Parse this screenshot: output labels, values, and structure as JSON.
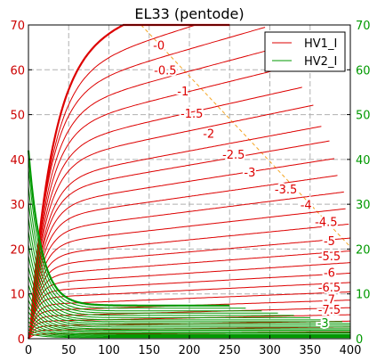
{
  "chart_data": {
    "type": "line",
    "title": "EL33 (pentode)",
    "xlabel": "",
    "ylabel": "",
    "y2label": "",
    "xlim": [
      0,
      400
    ],
    "ylim": [
      0,
      70
    ],
    "y2lim": [
      0,
      70
    ],
    "x_ticks": [
      0,
      50,
      100,
      150,
      200,
      250,
      300,
      350,
      400
    ],
    "y_ticks": [
      0,
      10,
      20,
      30,
      40,
      50,
      60,
      70
    ],
    "y2_ticks": [
      0,
      10,
      20,
      30,
      40,
      50,
      60,
      70
    ],
    "grid": true,
    "legend": {
      "placement": "top-right",
      "entries": [
        {
          "name": "HV1_I",
          "color": "#dd0000"
        },
        {
          "name": "HV2_I",
          "color": "#009900"
        }
      ]
    },
    "colors": {
      "anode_curves": "#dd0000",
      "screen_curves": "#009900",
      "load_line": "#f5a623",
      "left_axis_text": "#cc0000",
      "right_axis_text": "#009900"
    },
    "series": [
      {
        "name": "HV1_I",
        "grid_voltage": "-0",
        "end_x": 250,
        "plateau": 67.5,
        "knee": 28,
        "bold": true
      },
      {
        "name": "HV1_I",
        "grid_voltage": "-0.5",
        "end_x": 270,
        "plateau": 61.8,
        "knee": 26
      },
      {
        "name": "HV1_I",
        "grid_voltage": "-1",
        "end_x": 295,
        "plateau": 57.4,
        "knee": 24
      },
      {
        "name": "HV1_I",
        "grid_voltage": "-1.5",
        "end_x": 320,
        "plateau": 53.0,
        "knee": 23
      },
      {
        "name": "HV1_I",
        "grid_voltage": "-2",
        "end_x": 330,
        "plateau": 49.0,
        "knee": 22
      },
      {
        "name": "HV1_I",
        "grid_voltage": "-2.5",
        "end_x": 340,
        "plateau": 44.8,
        "knee": 21
      },
      {
        "name": "HV1_I",
        "grid_voltage": "-3",
        "end_x": 355,
        "plateau": 41.2,
        "knee": 20
      },
      {
        "name": "HV1_I",
        "grid_voltage": "-3.5",
        "end_x": 365,
        "plateau": 37.2,
        "knee": 19
      },
      {
        "name": "HV1_I",
        "grid_voltage": "-4",
        "end_x": 375,
        "plateau": 34.4,
        "knee": 18
      },
      {
        "name": "HV1_I",
        "grid_voltage": "-4.5",
        "end_x": 380,
        "plateau": 31.2,
        "knee": 17
      },
      {
        "name": "HV1_I",
        "grid_voltage": "-5",
        "end_x": 385,
        "plateau": 28.2,
        "knee": 16
      },
      {
        "name": "HV1_I",
        "grid_voltage": "-5.5",
        "end_x": 392,
        "plateau": 25.2,
        "knee": 15
      },
      {
        "name": "HV1_I",
        "grid_voltage": "-6",
        "end_x": 395,
        "plateau": 22.3,
        "knee": 14
      },
      {
        "name": "HV1_I",
        "grid_voltage": "-6.5",
        "end_x": 398,
        "plateau": 19.6,
        "knee": 13
      },
      {
        "name": "HV1_I",
        "grid_voltage": "-7",
        "end_x": 400,
        "plateau": 17.2,
        "knee": 12
      },
      {
        "name": "HV1_I",
        "grid_voltage": "-7.5",
        "end_x": 400,
        "plateau": 15.0,
        "knee": 11
      },
      {
        "name": "HV1_I",
        "grid_voltage": "",
        "end_x": 400,
        "plateau": 13.0,
        "knee": 10
      },
      {
        "name": "HV1_I",
        "grid_voltage": "",
        "end_x": 400,
        "plateau": 11.2,
        "knee": 9
      },
      {
        "name": "HV1_I",
        "grid_voltage": "",
        "end_x": 400,
        "plateau": 9.6,
        "knee": 8
      },
      {
        "name": "HV1_I",
        "grid_voltage": "",
        "end_x": 400,
        "plateau": 8.0,
        "knee": 8
      },
      {
        "name": "HV1_I",
        "grid_voltage": "",
        "end_x": 400,
        "plateau": 6.6,
        "knee": 7
      },
      {
        "name": "HV1_I",
        "grid_voltage": "",
        "end_x": 400,
        "plateau": 5.3,
        "knee": 7
      },
      {
        "name": "HV1_I",
        "grid_voltage": "",
        "end_x": 400,
        "plateau": 4.1,
        "knee": 6
      },
      {
        "name": "HV1_I",
        "grid_voltage": "",
        "end_x": 400,
        "plateau": 3.0,
        "knee": 6
      },
      {
        "name": "HV1_I",
        "grid_voltage": "",
        "end_x": 400,
        "plateau": 2.0,
        "knee": 5
      },
      {
        "name": "HV1_I",
        "grid_voltage": "",
        "end_x": 400,
        "plateau": 1.1,
        "knee": 5
      },
      {
        "name": "HV2_I",
        "grid_voltage": "-0",
        "end_x": 250,
        "peak": 42.0,
        "floor": 7.4,
        "bold": true
      },
      {
        "name": "HV2_I",
        "grid_voltage": "",
        "end_x": 270,
        "peak": 38.0,
        "floor": 6.8
      },
      {
        "name": "HV2_I",
        "grid_voltage": "",
        "end_x": 290,
        "peak": 34.0,
        "floor": 6.2
      },
      {
        "name": "HV2_I",
        "grid_voltage": "",
        "end_x": 310,
        "peak": 30.5,
        "floor": 5.7
      },
      {
        "name": "HV2_I",
        "grid_voltage": "",
        "end_x": 330,
        "peak": 27.0,
        "floor": 5.2
      },
      {
        "name": "HV2_I",
        "grid_voltage": "",
        "end_x": 350,
        "peak": 24.0,
        "floor": 4.7
      },
      {
        "name": "HV2_I",
        "grid_voltage": "",
        "end_x": 370,
        "peak": 21.0,
        "floor": 4.2
      },
      {
        "name": "HV2_I",
        "grid_voltage": "",
        "end_x": 390,
        "peak": 18.5,
        "floor": 3.8
      },
      {
        "name": "HV2_I",
        "grid_voltage": "",
        "end_x": 400,
        "peak": 16.0,
        "floor": 3.4
      },
      {
        "name": "HV2_I",
        "grid_voltage": "",
        "end_x": 400,
        "peak": 14.0,
        "floor": 3.0
      },
      {
        "name": "HV2_I",
        "grid_voltage": "",
        "end_x": 400,
        "peak": 12.0,
        "floor": 2.6
      },
      {
        "name": "HV2_I",
        "grid_voltage": "",
        "end_x": 400,
        "peak": 10.2,
        "floor": 2.2
      },
      {
        "name": "HV2_I",
        "grid_voltage": "",
        "end_x": 400,
        "peak": 8.6,
        "floor": 1.9
      },
      {
        "name": "HV2_I",
        "grid_voltage": "",
        "end_x": 400,
        "peak": 7.2,
        "floor": 1.6
      },
      {
        "name": "HV2_I",
        "grid_voltage": "",
        "end_x": 400,
        "peak": 6.0,
        "floor": 1.3
      },
      {
        "name": "HV2_I",
        "grid_voltage": "",
        "end_x": 400,
        "peak": 4.8,
        "floor": 1.0
      },
      {
        "name": "HV2_I",
        "grid_voltage": "",
        "end_x": 400,
        "peak": 3.8,
        "floor": 0.8
      },
      {
        "name": "HV2_I",
        "grid_voltage": "",
        "end_x": 400,
        "peak": 2.8,
        "floor": 0.6
      },
      {
        "name": "HV2_I",
        "grid_voltage": "",
        "end_x": 400,
        "peak": 2.0,
        "floor": 0.4
      },
      {
        "name": "HV2_I",
        "grid_voltage": "",
        "end_x": 400,
        "peak": 1.2,
        "floor": 0.25
      }
    ],
    "curve_labels": [
      {
        "text": "-0",
        "x": 162,
        "y": 65.5,
        "color": "#dd0000"
      },
      {
        "text": "-0.5",
        "x": 170,
        "y": 60.0,
        "color": "#dd0000"
      },
      {
        "text": "-1",
        "x": 192,
        "y": 55.3,
        "color": "#dd0000"
      },
      {
        "text": "-1.5",
        "x": 203,
        "y": 50.3,
        "color": "#dd0000"
      },
      {
        "text": "-2",
        "x": 224,
        "y": 45.8,
        "color": "#dd0000"
      },
      {
        "text": "-2.5",
        "x": 255,
        "y": 41.2,
        "color": "#dd0000"
      },
      {
        "text": "-3",
        "x": 275,
        "y": 37.2,
        "color": "#dd0000"
      },
      {
        "text": "-3.5",
        "x": 320,
        "y": 33.4,
        "color": "#dd0000"
      },
      {
        "text": "-4",
        "x": 345,
        "y": 29.9,
        "color": "#dd0000"
      },
      {
        "text": "-4.5",
        "x": 370,
        "y": 26.2,
        "color": "#dd0000"
      },
      {
        "text": "-5",
        "x": 374,
        "y": 21.9,
        "color": "#dd0000"
      },
      {
        "text": "-5.5",
        "x": 374,
        "y": 18.5,
        "color": "#dd0000"
      },
      {
        "text": "-6",
        "x": 374,
        "y": 14.8,
        "color": "#dd0000"
      },
      {
        "text": "-6.5",
        "x": 374,
        "y": 11.5,
        "color": "#dd0000"
      },
      {
        "text": "-7",
        "x": 374,
        "y": 8.8,
        "color": "#dd0000"
      },
      {
        "text": "-7.5",
        "x": 374,
        "y": 6.6,
        "color": "#dd0000"
      },
      {
        "text": "-3",
        "x": 366,
        "y": 3.6,
        "color": "#009900"
      }
    ],
    "load_line": {
      "points": [
        [
          140,
          70
        ],
        [
          400,
          20.5
        ]
      ],
      "dashed": true
    }
  }
}
